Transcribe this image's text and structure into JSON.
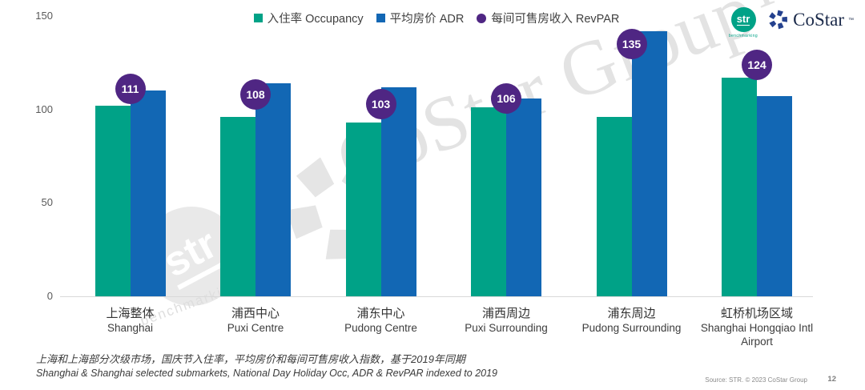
{
  "chart_data": {
    "type": "bar",
    "title": "",
    "categories_zh": [
      "上海整体",
      "浦西中心",
      "浦东中心",
      "浦西周边",
      "浦东周边",
      "虹桥机场区域"
    ],
    "categories_en": [
      "Shanghai",
      "Puxi Centre",
      "Pudong Centre",
      "Puxi Surrounding",
      "Pudong Surrounding",
      "Shanghai Hongqiao Intl Airport"
    ],
    "series": [
      {
        "name": "入住率 Occupancy",
        "marker": "square",
        "color": "#00A287",
        "values": [
          102,
          96,
          93,
          101,
          96,
          117
        ]
      },
      {
        "name": "平均房价 ADR",
        "marker": "square",
        "color": "#1267B4",
        "values": [
          110,
          114,
          112,
          106,
          142,
          107
        ]
      },
      {
        "name": "每间可售房收入 RevPAR",
        "marker": "circle",
        "color": "#4F2683",
        "values": [
          111,
          108,
          103,
          106,
          135,
          124
        ],
        "labeled": true
      }
    ],
    "ylim": [
      0,
      150
    ],
    "yticks": [
      0,
      50,
      100,
      150
    ],
    "grid": false,
    "legend_position": "top-center"
  },
  "logos": {
    "str_text": "str",
    "str_subtext": "benchmarking",
    "str_color": "#00A287",
    "costar_text": "CoStar",
    "costar_tm": "™",
    "costar_color": "#24418E"
  },
  "watermark": {
    "text": "CoStar Group™",
    "stamp_text": "str",
    "stamp_subtext": "benchmarking"
  },
  "footer": {
    "caption_zh": "上海和上海部分次级市场，国庆节入住率，平均房价和每间可售房收入指数，基于2019年同期",
    "caption_en": "Shanghai & Shanghai selected submarkets, National Day Holiday Occ, ADR & RevPAR indexed to 2019",
    "source": "Source: STR. © 2023 CoStar Group",
    "page": "12"
  }
}
